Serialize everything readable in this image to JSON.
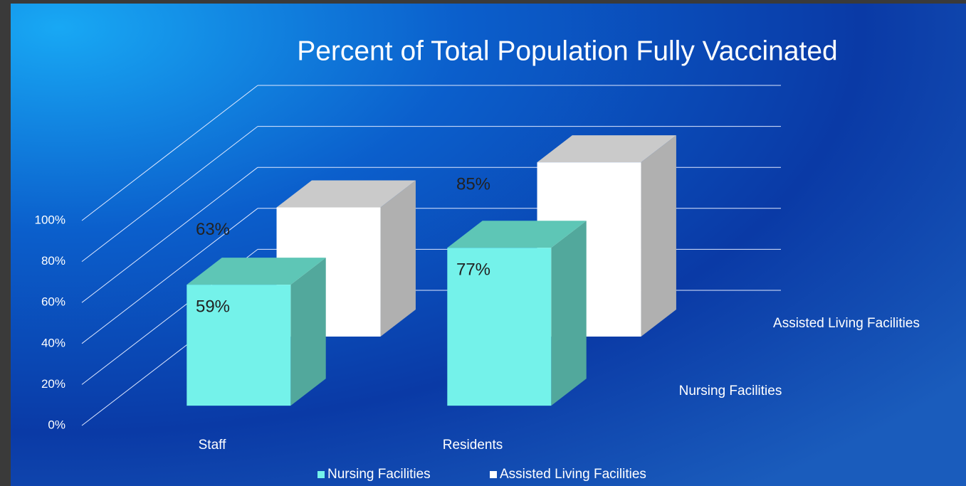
{
  "chart_data": {
    "type": "bar3d",
    "title": "Percent of Total Population Fully Vaccinated",
    "categories": [
      "Staff",
      "Residents"
    ],
    "series": [
      {
        "name": "Nursing Facilities",
        "color": "#74f2ea",
        "values": [
          59,
          77
        ],
        "value_labels": [
          "59%",
          "77%"
        ]
      },
      {
        "name": "Assisted Living Facilities",
        "color": "#ffffff",
        "values": [
          63,
          85
        ],
        "value_labels": [
          "63%",
          "85%"
        ]
      }
    ],
    "ylim": [
      0,
      100
    ],
    "yticks": [
      {
        "value": 0,
        "label": "0%"
      },
      {
        "value": 20,
        "label": "20%"
      },
      {
        "value": 40,
        "label": "40%"
      },
      {
        "value": 60,
        "label": "60%"
      },
      {
        "value": 80,
        "label": "80%"
      },
      {
        "value": 100,
        "label": "100%"
      }
    ],
    "grid": true,
    "legend": "bottom"
  }
}
